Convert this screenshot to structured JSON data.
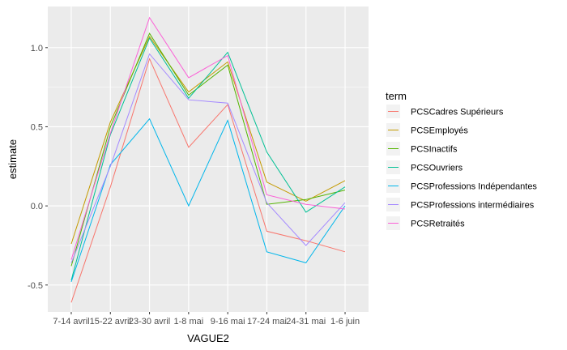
{
  "chart_data": {
    "type": "line",
    "title": "",
    "xlabel": "VAGUE2",
    "ylabel": "estimate",
    "categories": [
      "7-14 avril",
      "15-22 avril",
      "23-30 avril",
      "1-8 mai",
      "9-16 mai",
      "17-24 mai",
      "24-31 mai",
      "1-6 juin"
    ],
    "ylim": [
      -0.67,
      1.26
    ],
    "yticks": [
      -0.5,
      0.0,
      0.5,
      1.0
    ],
    "ytick_labels": [
      "-0.5",
      "0.0",
      "0.5",
      "1.0"
    ],
    "grid": true,
    "legend_title": "term",
    "legend_position": "right",
    "series": [
      {
        "name": "PCSCadres Supérieurs",
        "color": "#F8766D",
        "values": [
          -0.61,
          0.12,
          0.93,
          0.37,
          0.64,
          -0.16,
          -0.22,
          -0.29
        ]
      },
      {
        "name": "PCSEmployés",
        "color": "#C49A00",
        "values": [
          -0.24,
          0.53,
          1.07,
          0.72,
          0.91,
          0.15,
          0.03,
          0.16
        ]
      },
      {
        "name": "PCSInactifs",
        "color": "#53B400",
        "values": [
          -0.38,
          0.5,
          1.09,
          0.7,
          0.89,
          0.01,
          0.04,
          0.1
        ]
      },
      {
        "name": "PCSOuvriers",
        "color": "#00C094",
        "values": [
          -0.47,
          0.45,
          1.06,
          0.68,
          0.97,
          0.34,
          -0.04,
          0.12
        ]
      },
      {
        "name": "PCSProfessions Indépendantes",
        "color": "#00B6EB",
        "values": [
          -0.48,
          0.26,
          0.55,
          0.0,
          0.54,
          -0.29,
          -0.36,
          0.0
        ]
      },
      {
        "name": "PCSProfessions intermédiaires",
        "color": "#A58AFF",
        "values": [
          -0.36,
          0.25,
          0.96,
          0.67,
          0.65,
          0.02,
          -0.25,
          0.02
        ]
      },
      {
        "name": "PCSRetraités",
        "color": "#FB61D7",
        "values": [
          -0.34,
          0.46,
          1.19,
          0.81,
          0.95,
          0.07,
          0.01,
          -0.02
        ]
      }
    ]
  }
}
